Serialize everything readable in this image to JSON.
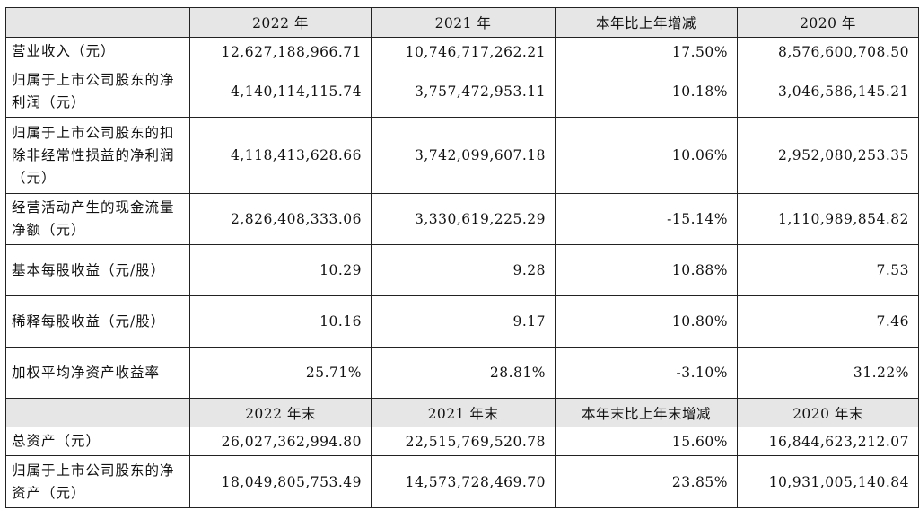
{
  "header1": [
    "",
    "2022 年",
    "2021 年",
    "本年比上年增减",
    "2020 年"
  ],
  "rows1": [
    {
      "label": "营业收入（元）",
      "v": [
        "12,627,188,966.71",
        "10,746,717,262.21",
        "17.50%",
        "8,576,600,708.50"
      ]
    },
    {
      "label": "归属于上市公司股东的净利润（元）",
      "v": [
        "4,140,114,115.74",
        "3,757,472,953.11",
        "10.18%",
        "3,046,586,145.21"
      ]
    },
    {
      "label": "归属于上市公司股东的扣除非经常性损益的净利润（元）",
      "v": [
        "4,118,413,628.66",
        "3,742,099,607.18",
        "10.06%",
        "2,952,080,253.35"
      ]
    },
    {
      "label": "经营活动产生的现金流量净额（元）",
      "v": [
        "2,826,408,333.06",
        "3,330,619,225.29",
        "-15.14%",
        "1,110,989,854.82"
      ]
    },
    {
      "label": "基本每股收益（元/股）",
      "v": [
        "10.29",
        "9.28",
        "10.88%",
        "7.53"
      ]
    },
    {
      "label": "稀释每股收益（元/股）",
      "v": [
        "10.16",
        "9.17",
        "10.80%",
        "7.46"
      ]
    },
    {
      "label": "加权平均净资产收益率",
      "v": [
        "25.71%",
        "28.81%",
        "-3.10%",
        "31.22%"
      ]
    }
  ],
  "header2": [
    "",
    "2022 年末",
    "2021 年末",
    "本年末比上年末增减",
    "2020 年末"
  ],
  "rows2": [
    {
      "label": "总资产（元）",
      "v": [
        "26,027,362,994.80",
        "22,515,769,520.78",
        "15.60%",
        "16,844,623,212.07"
      ]
    },
    {
      "label": "归属于上市公司股东的净资产（元）",
      "v": [
        "18,049,805,753.49",
        "14,573,728,469.70",
        "23.85%",
        "10,931,005,140.84"
      ]
    }
  ]
}
